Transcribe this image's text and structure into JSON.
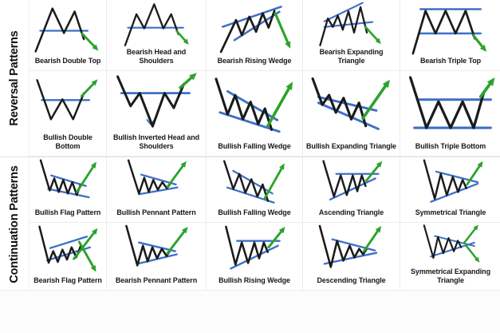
{
  "colors": {
    "price_line": "#1b1b1b",
    "trend_line": "#3d6fc7",
    "breakout_arrow": "#2ba32b",
    "grid_line": "#ececec",
    "background": "#ffffff"
  },
  "sections": [
    {
      "title": "Reversal Patterns",
      "rows": [
        [
          {
            "label": "Bearish Double Top",
            "drawing": "bearish-double-top"
          },
          {
            "label": "Bearish Head and Shoulders",
            "drawing": "bearish-head-shoulders"
          },
          {
            "label": "Bearish Rising Wedge",
            "drawing": "bearish-rising-wedge"
          },
          {
            "label": "Bearish Expanding Triangle",
            "drawing": "bearish-expanding-triangle"
          },
          {
            "label": "Bearish Triple Top",
            "drawing": "bearish-triple-top"
          }
        ],
        [
          {
            "label": "Bullish Double Bottom",
            "drawing": "bullish-double-bottom"
          },
          {
            "label": "Bullish Inverted Head and Shoulders",
            "drawing": "bullish-inverted-head-and-shoulders"
          },
          {
            "label": "Bullish Falling Wedge",
            "drawing": "bullish-falling-wedge"
          },
          {
            "label": "Bullish Expanding Triangle",
            "drawing": "bullish-expanding-triangle"
          },
          {
            "label": "Bullish Triple Bottom",
            "drawing": "bullish-triple-bottom"
          }
        ]
      ]
    },
    {
      "title": "Continuation Patterns",
      "rows": [
        [
          {
            "label": "Bullish Flag Pattern",
            "drawing": "bullish-flag"
          },
          {
            "label": "Bullish Pennant Pattern",
            "drawing": "bullish-pennant"
          },
          {
            "label": "Bullish Falling Wedge",
            "drawing": "bullish-falling-wedge"
          },
          {
            "label": "Ascending Triangle",
            "drawing": "ascending-triangle"
          },
          {
            "label": "Symmetrical Triangle",
            "drawing": "symmetrical-triangle"
          }
        ],
        [
          {
            "label": "Bearish Flag Pattern",
            "drawing": "bearish-flag"
          },
          {
            "label": "Bearish Pennant Pattern",
            "drawing": "bearish-pennant"
          },
          {
            "label": "Bullish Rising Wedge",
            "drawing": "bullish-rising-wedge"
          },
          {
            "label": "Descending Triangle",
            "drawing": "descending-triangle"
          },
          {
            "label": "Symmetrical Expanding Triangle",
            "drawing": "symmetrical-expanding-triangle"
          }
        ]
      ]
    }
  ]
}
